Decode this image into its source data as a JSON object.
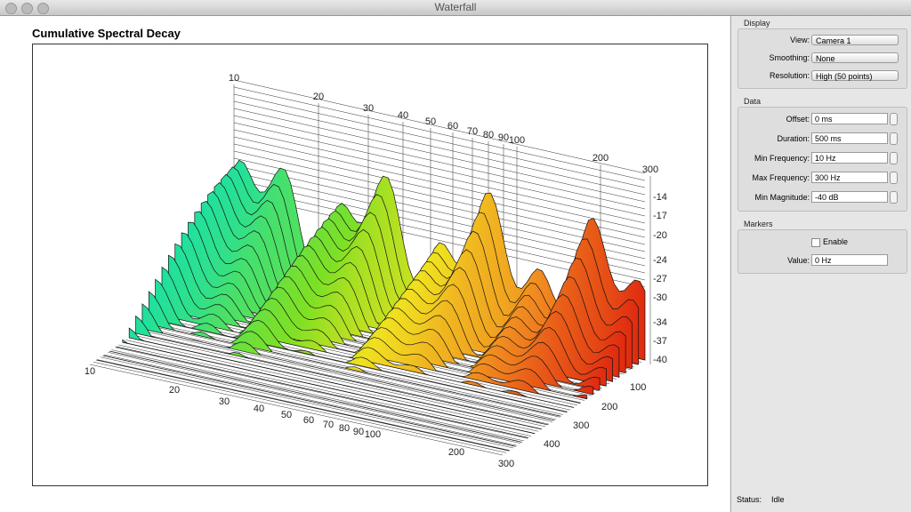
{
  "window": {
    "title": "Waterfall"
  },
  "plot": {
    "title": "Cumulative Spectral Decay",
    "back_freq_ticks": [
      "10",
      "20",
      "30",
      "40",
      "50",
      "60",
      "70",
      "80",
      "90",
      "100",
      "200",
      "300"
    ],
    "magnitude_ticks": [
      "-14",
      "-17",
      "-20",
      "-24",
      "-27",
      "-30",
      "-34",
      "-37",
      "-40"
    ],
    "time_ticks": [
      "100",
      "200",
      "300",
      "400"
    ],
    "front_freq_ticks": [
      "10",
      "20",
      "30",
      "40",
      "50",
      "60",
      "70",
      "80",
      "90",
      "100",
      "200",
      "300"
    ]
  },
  "sidebar": {
    "display": {
      "heading": "Display",
      "fields": [
        {
          "label": "View:",
          "value": "Camera 1"
        },
        {
          "label": "Smoothing:",
          "value": "None"
        },
        {
          "label": "Resolution:",
          "value": "High (50 points)"
        }
      ]
    },
    "data": {
      "heading": "Data",
      "fields": [
        {
          "label": "Offset:",
          "value": "0 ms"
        },
        {
          "label": "Duration:",
          "value": "500 ms"
        },
        {
          "label": "Min Frequency:",
          "value": "10 Hz"
        },
        {
          "label": "Max Frequency:",
          "value": "300 Hz"
        },
        {
          "label": "Min Magnitude:",
          "value": "-40 dB"
        }
      ]
    },
    "markers": {
      "heading": "Markers",
      "enable": "Enable",
      "value_label": "Value:",
      "value": "0 Hz"
    }
  },
  "status": {
    "label": "Status:",
    "value": "Idle"
  }
}
